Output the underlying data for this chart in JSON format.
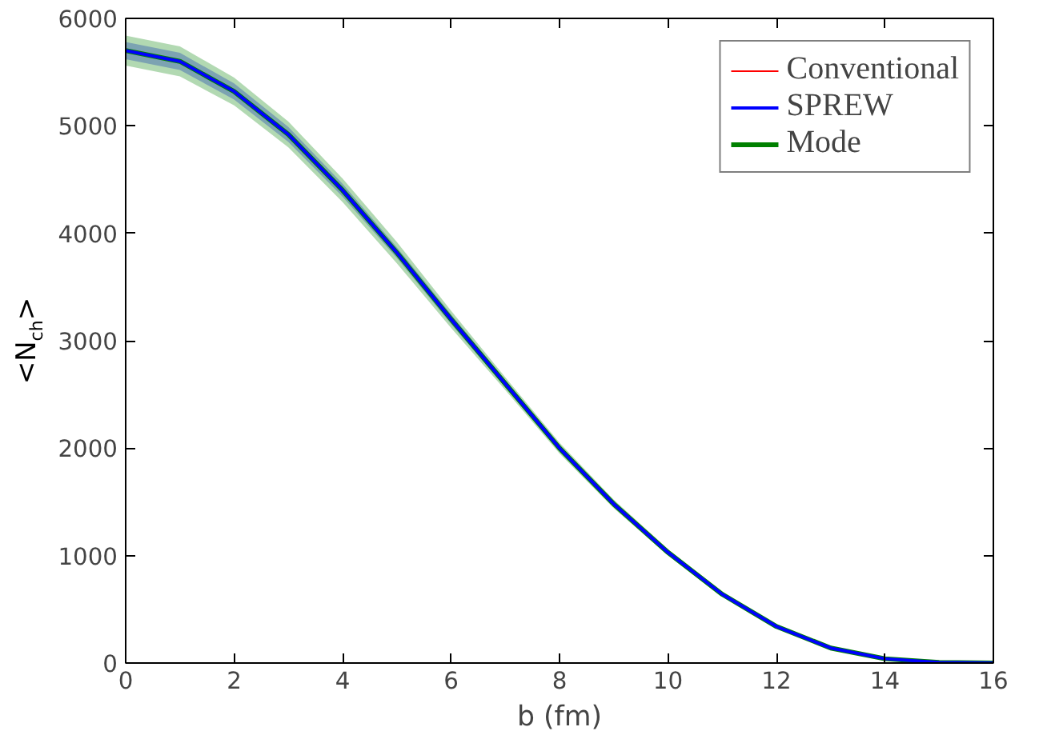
{
  "chart_data": {
    "type": "line",
    "xlabel": "b (fm)",
    "ylabel": "<N$_{ch}$>",
    "x": [
      0,
      1,
      2,
      3,
      4,
      5,
      6,
      7,
      8,
      9,
      10,
      11,
      12,
      13,
      14,
      15,
      16
    ],
    "series": [
      {
        "name": "Conventional",
        "color": "#ff0000",
        "values": [
          null,
          null,
          null,
          null,
          null,
          null,
          null,
          null,
          null,
          null,
          null,
          null,
          null,
          null,
          null,
          null,
          null
        ]
      },
      {
        "name": "SPREW",
        "color": "#0000ff",
        "values": [
          5700,
          5600,
          5320,
          4920,
          4400,
          3820,
          3200,
          2600,
          2000,
          1480,
          1030,
          640,
          340,
          140,
          40,
          5,
          0
        ],
        "lower": [
          5620,
          5520,
          5245,
          4850,
          4340,
          3770,
          3155,
          2565,
          1970,
          1460,
          1015,
          630,
          335,
          138,
          39,
          5,
          0
        ],
        "upper": [
          5780,
          5680,
          5395,
          4990,
          4460,
          3870,
          3245,
          2635,
          2030,
          1500,
          1045,
          650,
          345,
          142,
          41,
          5,
          0
        ]
      },
      {
        "name": "Mode",
        "color": "#008000",
        "values": [
          5700,
          5600,
          5320,
          4920,
          4400,
          3820,
          3200,
          2600,
          2000,
          1480,
          1030,
          640,
          340,
          140,
          40,
          5,
          0
        ],
        "lower": [
          5560,
          5460,
          5190,
          4800,
          4290,
          3720,
          3120,
          2540,
          1950,
          1440,
          1000,
          620,
          330,
          135,
          38,
          5,
          0
        ],
        "upper": [
          5840,
          5740,
          5450,
          5040,
          4510,
          3920,
          3280,
          2660,
          2050,
          1520,
          1060,
          660,
          350,
          145,
          42,
          5,
          0
        ]
      }
    ],
    "xlim": [
      0,
      16
    ],
    "xticks": [
      0,
      2,
      4,
      6,
      8,
      10,
      12,
      14,
      16
    ],
    "ylim": [
      0,
      6000
    ],
    "yticks": [
      0,
      1000,
      2000,
      3000,
      4000,
      5000,
      6000
    ],
    "grid": false,
    "legend": "top right"
  }
}
